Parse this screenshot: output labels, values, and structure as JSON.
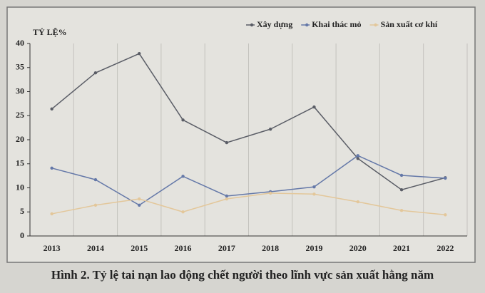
{
  "chart_data": {
    "type": "line",
    "y_label": "TỶ LỆ%",
    "categories": [
      "2013",
      "2014",
      "2015",
      "2016",
      "2017",
      "2018",
      "2019",
      "2020",
      "2021",
      "2022"
    ],
    "series": [
      {
        "name": "Xây dựng",
        "color": "#5a5d66",
        "values": [
          26.4,
          33.9,
          37.9,
          24.1,
          19.4,
          22.2,
          26.8,
          16.1,
          9.6,
          12.1
        ]
      },
      {
        "name": "Khai thác mỏ",
        "color": "#6478a8",
        "values": [
          14.1,
          11.7,
          6.4,
          12.4,
          8.3,
          9.2,
          10.2,
          16.7,
          12.6,
          12.0
        ]
      },
      {
        "name": "Sản xuất cơ khí",
        "color": "#e3c79a",
        "values": [
          4.6,
          6.4,
          7.7,
          5.0,
          7.7,
          8.9,
          8.7,
          7.1,
          5.3,
          4.4
        ]
      }
    ],
    "ylim": [
      0,
      40
    ],
    "yticks": [
      0,
      5,
      10,
      15,
      20,
      25,
      30,
      35,
      40
    ],
    "grid": true,
    "legend": "top-right",
    "caption": "Hình 2. Tỷ lệ tai nạn lao động chết người theo lĩnh vực sản xuất hằng năm"
  }
}
